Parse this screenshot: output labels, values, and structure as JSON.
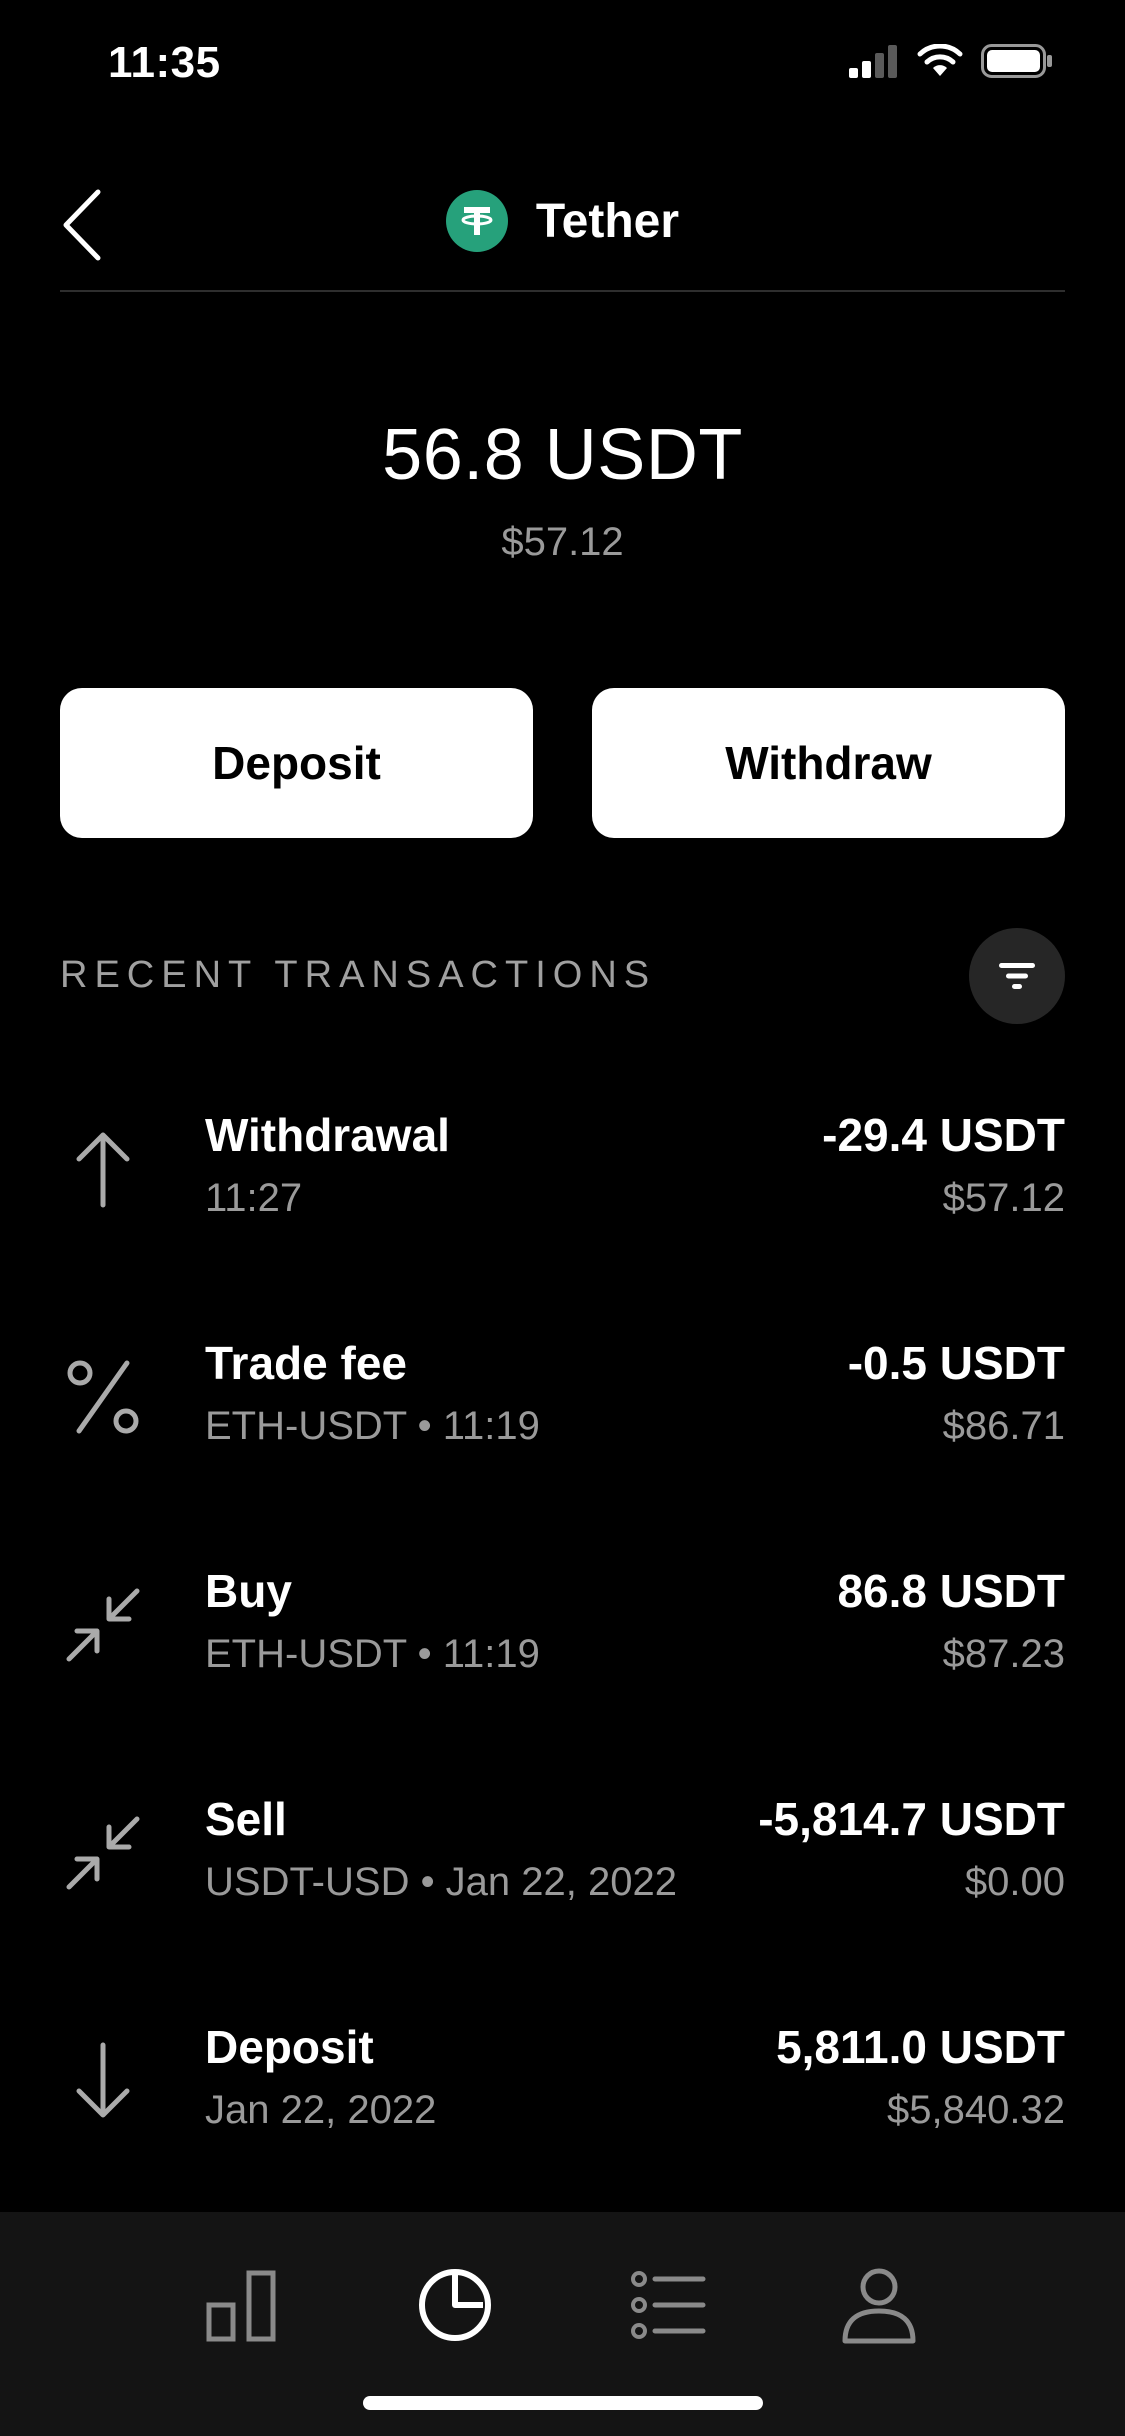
{
  "status_bar": {
    "time": "11:35"
  },
  "header": {
    "title": "Tether",
    "logo_glyph": "T",
    "logo_color": "#26a17b"
  },
  "balance": {
    "amount": "56.8 USDT",
    "fiat": "$57.12"
  },
  "actions": {
    "deposit_label": "Deposit",
    "withdraw_label": "Withdraw"
  },
  "section": {
    "title": "RECENT TRANSACTIONS"
  },
  "transactions": [
    {
      "icon": "arrow-up-icon",
      "title": "Withdrawal",
      "subtitle": "11:27",
      "amount": "-29.4 USDT",
      "fiat": "$57.12"
    },
    {
      "icon": "percent-icon",
      "title": "Trade fee",
      "subtitle": "ETH-USDT • 11:19",
      "amount": "-0.5 USDT",
      "fiat": "$86.71"
    },
    {
      "icon": "trade-arrows-icon",
      "title": "Buy",
      "subtitle": "ETH-USDT • 11:19",
      "amount": "86.8 USDT",
      "fiat": "$87.23"
    },
    {
      "icon": "trade-arrows-icon",
      "title": "Sell",
      "subtitle": "USDT-USD • Jan 22, 2022",
      "amount": "-5,814.7 USDT",
      "fiat": "$0.00"
    },
    {
      "icon": "arrow-down-icon",
      "title": "Deposit",
      "subtitle": "Jan 22, 2022",
      "amount": "5,811.0 USDT",
      "fiat": "$5,840.32"
    }
  ],
  "tab_bar": {
    "tabs": [
      {
        "icon": "bar-chart-icon",
        "active": false
      },
      {
        "icon": "pie-chart-icon",
        "active": true
      },
      {
        "icon": "list-icon",
        "active": false
      },
      {
        "icon": "profile-icon",
        "active": false
      }
    ]
  },
  "colors": {
    "background": "#000000",
    "secondary_text": "#9a9a9a",
    "tab_bar": "#141414",
    "accent": "#26a17b"
  }
}
